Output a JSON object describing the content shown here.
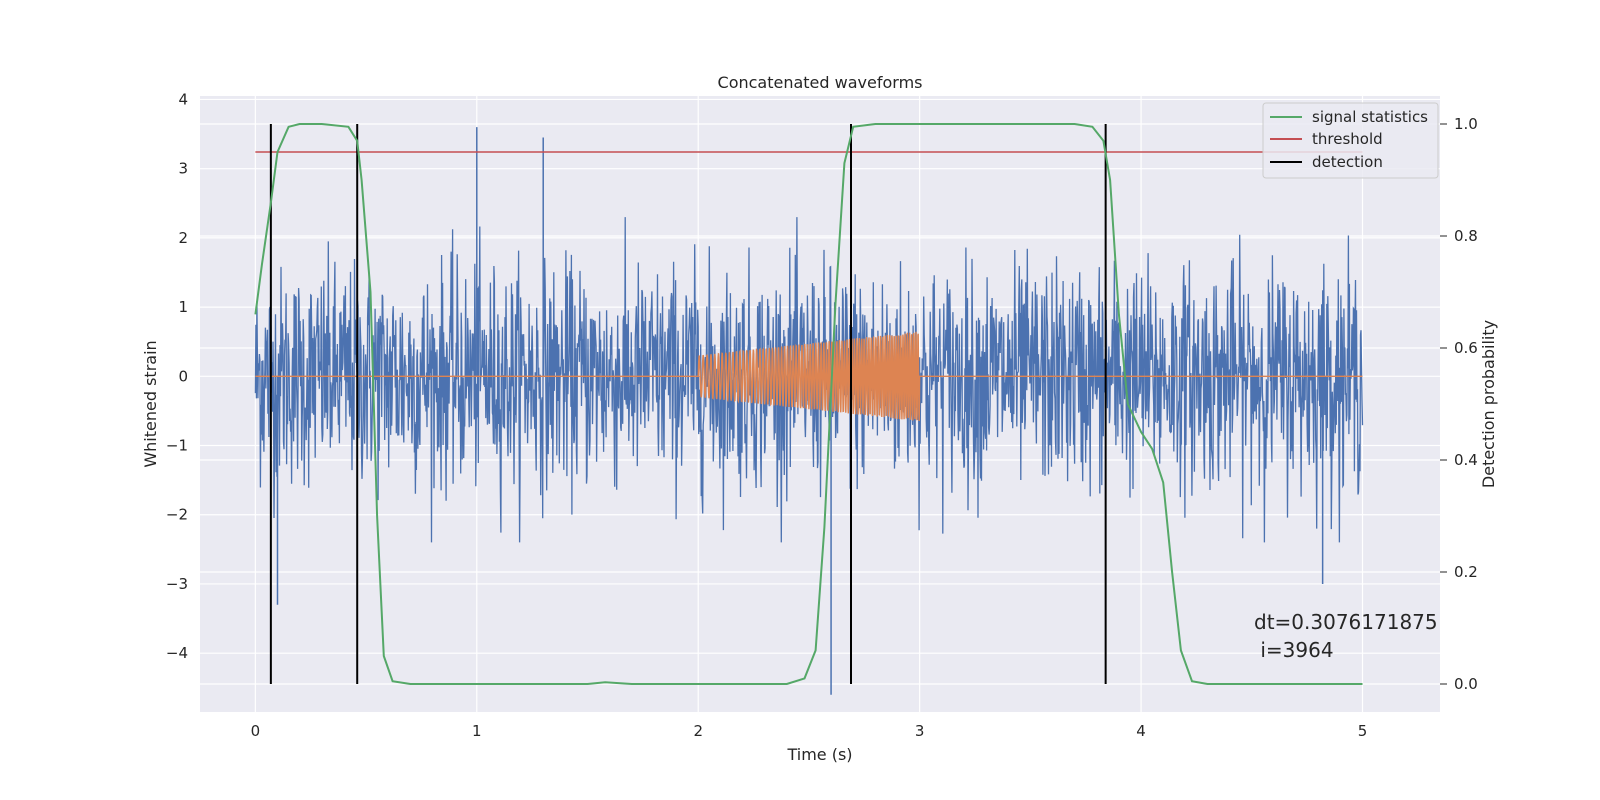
{
  "chart_data": {
    "type": "line",
    "title": "Concatenated waveforms",
    "xlabel": "Time (s)",
    "ylabel": "Whitened strain",
    "y2label": "Detection probability",
    "xlim": [
      -0.25,
      5.35
    ],
    "ylim": [
      -4.85,
      4.05
    ],
    "y2lim": [
      -0.05,
      1.05
    ],
    "xticks": [
      0,
      1,
      2,
      3,
      4,
      5
    ],
    "xtick_labels": [
      "0",
      "1",
      "2",
      "3",
      "4",
      "5"
    ],
    "yticks": [
      -4,
      -3,
      -2,
      -1,
      0,
      1,
      2,
      3,
      4
    ],
    "ytick_labels": [
      "−4",
      "−3",
      "−2",
      "−1",
      "0",
      "1",
      "2",
      "3",
      "4"
    ],
    "y2ticks": [
      0.0,
      0.2,
      0.4,
      0.6,
      0.8,
      1.0
    ],
    "y2tick_labels": [
      "0.0",
      "0.2",
      "0.4",
      "0.6",
      "0.8",
      "1.0"
    ],
    "grid": true,
    "legend_position": "top-right",
    "colors": {
      "background": "#eaeaf2",
      "grid": "#ffffff",
      "strain": "#4c72b0",
      "template": "#dd8452",
      "signal_statistics": "#55a868",
      "threshold": "#c44e52",
      "detection": "#000000"
    },
    "series": [
      {
        "name": "",
        "axis": "left",
        "description_kind": "noise",
        "x_range": [
          0,
          5
        ],
        "envelope_y": [
          -2.4,
          2.3
        ],
        "peaks": [
          [
            1.0,
            3.6
          ],
          [
            1.3,
            3.45
          ],
          [
            2.6,
            -4.6
          ],
          [
            0.1,
            -3.3
          ],
          [
            4.82,
            -3.0
          ]
        ]
      },
      {
        "name": "",
        "axis": "left",
        "description_kind": "chirp",
        "x_range": [
          2,
          3
        ],
        "amp_start": 0.3,
        "amp_end": 0.65
      },
      {
        "name": "signal statistics",
        "axis": "right",
        "x": [
          0.0,
          0.03,
          0.07,
          0.1,
          0.15,
          0.2,
          0.3,
          0.42,
          0.46,
          0.48,
          0.52,
          0.55,
          0.58,
          0.62,
          0.7,
          1.5,
          1.58,
          1.7,
          2.4,
          2.48,
          2.53,
          2.57,
          2.62,
          2.66,
          2.7,
          2.8,
          3.7,
          3.78,
          3.83,
          3.86,
          3.9,
          3.94,
          4.0,
          4.05,
          4.1,
          4.14,
          4.18,
          4.23,
          4.3,
          5.0
        ],
        "y": [
          0.66,
          0.75,
          0.86,
          0.95,
          0.995,
          1.0,
          1.0,
          0.995,
          0.97,
          0.9,
          0.7,
          0.3,
          0.05,
          0.005,
          0.0,
          0.0,
          0.003,
          0.0,
          0.0,
          0.01,
          0.06,
          0.28,
          0.68,
          0.93,
          0.995,
          1.0,
          1.0,
          0.995,
          0.97,
          0.9,
          0.66,
          0.5,
          0.45,
          0.42,
          0.36,
          0.2,
          0.06,
          0.005,
          0.0,
          0.0
        ]
      },
      {
        "name": "threshold",
        "axis": "right",
        "x": [
          0,
          5
        ],
        "y": [
          0.95,
          0.95
        ]
      }
    ],
    "detections": {
      "name": "detection",
      "x": [
        0.07,
        0.46,
        2.69,
        3.84
      ],
      "y_range": [
        0.0,
        1.0
      ]
    },
    "annotation": {
      "line1": "dt=0.3076171875",
      "line2": " i=3964"
    }
  }
}
